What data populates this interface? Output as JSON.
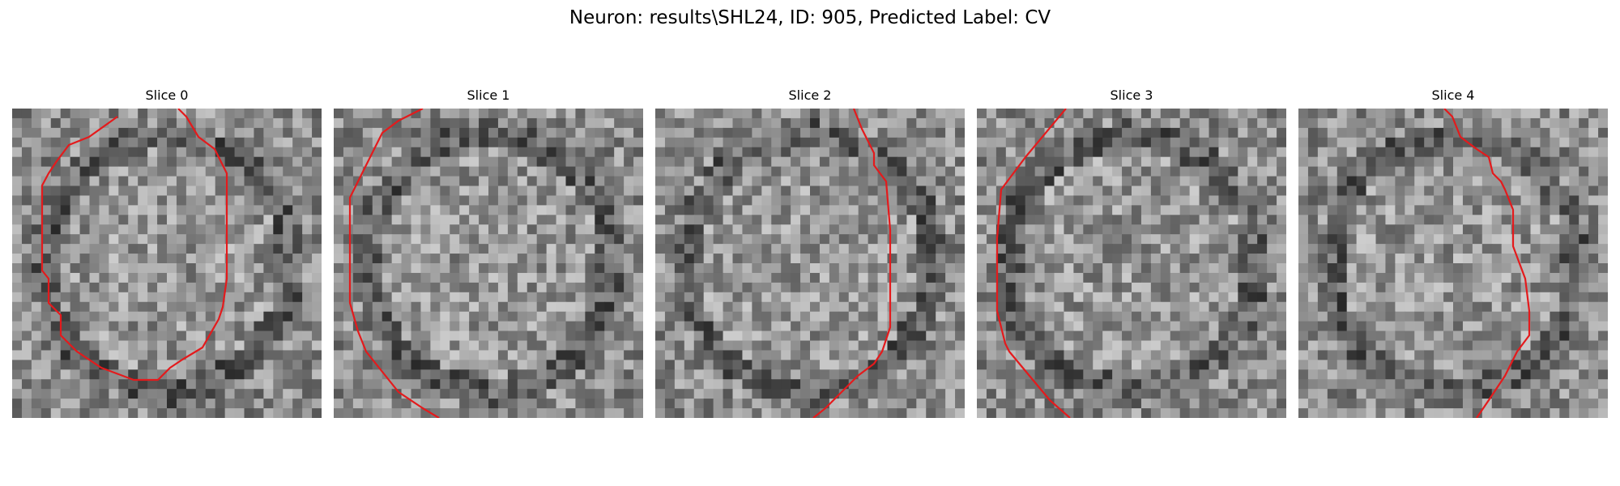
{
  "figure": {
    "title": "Neuron: results\\SHL24, ID: 905, Predicted Label: CV"
  },
  "panels": [
    {
      "title": "Slice 0"
    },
    {
      "title": "Slice 1"
    },
    {
      "title": "Slice 2"
    },
    {
      "title": "Slice 3"
    },
    {
      "title": "Slice 4"
    }
  ],
  "colors": {
    "contour": "#e41a1c",
    "colormap": "grayscale"
  }
}
